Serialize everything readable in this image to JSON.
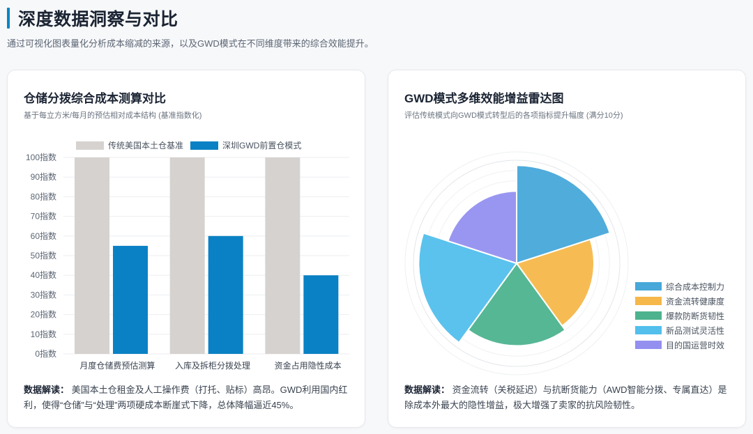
{
  "page": {
    "title": "深度数据洞察与对比",
    "subtitle": "通过可视化图表量化分析成本缩减的来源，以及GWD模式在不同维度带来的综合效能提升。",
    "accent": "#0a84c6"
  },
  "bar_card": {
    "title": "仓储分拨综合成本测算对比",
    "subtitle": "基于每立方米/每月的预估相对成本结构 (基准指数化)",
    "insight_lead": "数据解读：",
    "insight_text": "美国本土仓租金及人工操作费（打托、贴标）高昂。GWD利用国内红利，使得“仓储”与“处理”两项硬成本断崖式下降，总体降幅逼近45%。"
  },
  "radar_card": {
    "title": "GWD模式多维效能增益雷达图",
    "subtitle": "评估传统模式向GWD模式转型后的各项指标提升幅度 (满分10分)",
    "insight_lead": "数据解读：",
    "insight_text": "资金流转（关税延迟）与抗断货能力（AWD智能分拨、专属直达）是除成本外最大的隐性增益，极大增强了卖家的抗风险韧性。"
  },
  "chart_data": [
    {
      "type": "bar",
      "categories": [
        "月度仓储费预估测算",
        "入库及拆柜分拨处理",
        "资金占用隐性成本"
      ],
      "series": [
        {
          "name": "传统美国本土仓基准",
          "values": [
            100,
            100,
            100
          ],
          "color": "#d6d2cf"
        },
        {
          "name": "深圳GWD前置仓模式",
          "values": [
            55,
            60,
            40
          ],
          "color": "#0a81c4"
        }
      ],
      "ylim": [
        0,
        100
      ],
      "yticks": [
        0,
        10,
        20,
        30,
        40,
        50,
        60,
        70,
        80,
        90,
        100
      ],
      "ytick_suffix": "指数",
      "grid": true,
      "legend": "top"
    },
    {
      "type": "radar",
      "categories": [
        "综合成本控制力",
        "资金流转健康度",
        "爆款防断货韧性",
        "新品测试灵活性",
        "目的国运营时效"
      ],
      "values": [
        9.5,
        7.5,
        8,
        9.5,
        7
      ],
      "colors": [
        "#47a8d9",
        "#f6b84a",
        "#4db38f",
        "#52bfec",
        "#9490f0"
      ],
      "rmax": 10,
      "legend": "right"
    }
  ]
}
